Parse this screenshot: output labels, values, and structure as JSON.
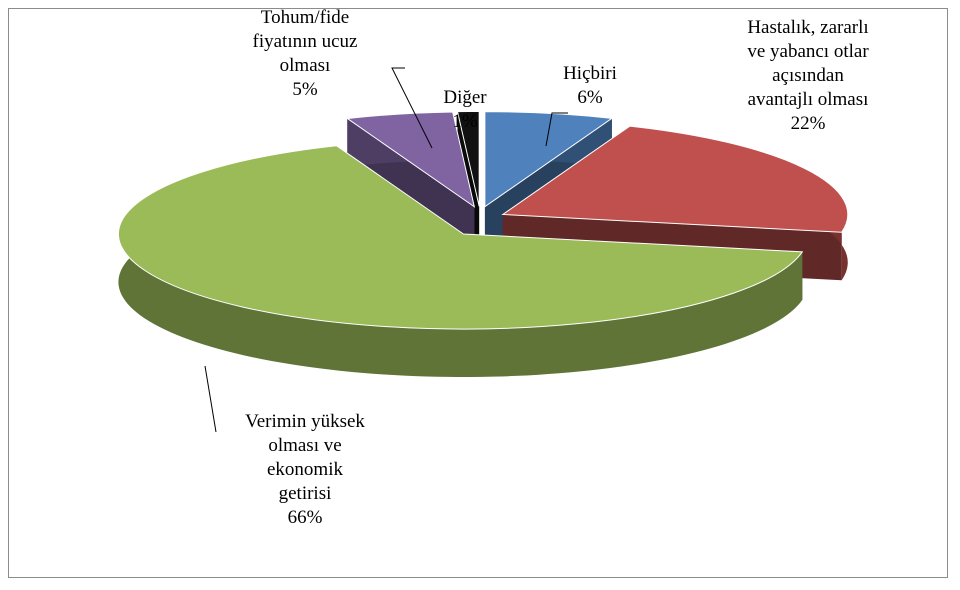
{
  "chart_data": {
    "type": "pie",
    "categories": [
      "Hiçbiri",
      "Hastalık, zararlı\nve yabancı otlar\naçısından\navantajlı olması",
      "Verimin yüksek\nolması ve\nekonomik\ngetirisi",
      "Tohum/fide\nfiyatının ucuz\nolması",
      "Diğer"
    ],
    "values": [
      6,
      22,
      66,
      5,
      1
    ],
    "value_labels": [
      "6%",
      "22%",
      "66%",
      "5%",
      "1%"
    ],
    "colors": [
      "#4f81bd",
      "#c0504d",
      "#9bbb59",
      "#8064a2",
      "#111111"
    ]
  }
}
